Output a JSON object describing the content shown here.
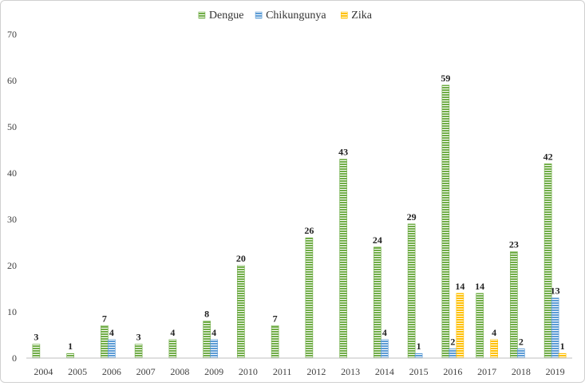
{
  "chart_data": {
    "type": "bar",
    "title": "",
    "xlabel": "",
    "ylabel": "",
    "categories": [
      "2004",
      "2005",
      "2006",
      "2007",
      "2008",
      "2009",
      "2010",
      "2011",
      "2012",
      "2013",
      "2014",
      "2015",
      "2016",
      "2017",
      "2018",
      "2019"
    ],
    "series": [
      {
        "name": "Dengue",
        "color": "#70ad47",
        "values": [
          3,
          1,
          7,
          3,
          4,
          8,
          20,
          7,
          26,
          43,
          24,
          29,
          59,
          14,
          23,
          42
        ]
      },
      {
        "name": "Chikungunya",
        "color": "#5b9bd5",
        "values": [
          null,
          null,
          4,
          null,
          null,
          4,
          null,
          null,
          null,
          null,
          4,
          1,
          2,
          null,
          2,
          13
        ]
      },
      {
        "name": "Zika",
        "color": "#ffc000",
        "values": [
          null,
          null,
          null,
          null,
          null,
          null,
          null,
          null,
          null,
          null,
          null,
          null,
          14,
          4,
          null,
          1
        ]
      }
    ],
    "data_labels": {
      "Dengue": [
        "3",
        "1",
        "7",
        "3",
        "4",
        "8",
        "20",
        "7",
        "26",
        "43",
        "24",
        "29",
        "59",
        "14",
        "23",
        "42"
      ],
      "Chikungunya": [
        null,
        null,
        "4",
        null,
        null,
        "4",
        null,
        null,
        null,
        null,
        "4",
        "1",
        "2",
        null,
        "2",
        "13"
      ],
      "Zika": [
        null,
        null,
        null,
        null,
        null,
        null,
        null,
        null,
        null,
        null,
        null,
        null,
        "14",
        "4",
        null,
        "1"
      ]
    },
    "ylim": [
      0,
      70
    ],
    "yticks": [
      "0",
      "10",
      "20",
      "30",
      "40",
      "50",
      "60",
      "70"
    ],
    "grid": false,
    "legend_position": "top-center",
    "bar_fill": "horizontal-stripes"
  }
}
